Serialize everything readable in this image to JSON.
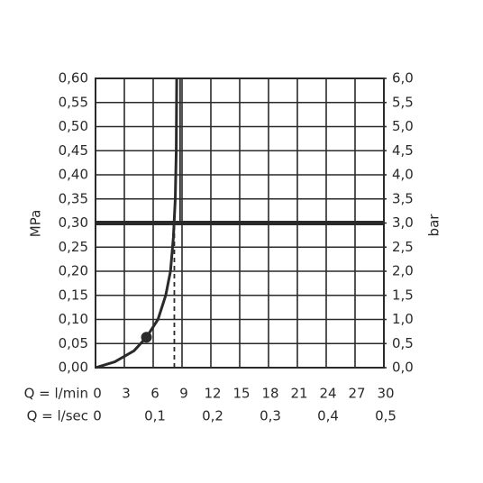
{
  "chart_data": {
    "type": "line",
    "x_label": "Q = l/min",
    "x2_label": "Q = l/sec",
    "y_label": "MPa",
    "y2_label": "bar",
    "xlim": [
      0,
      30
    ],
    "xticks": [
      0,
      3,
      6,
      9,
      12,
      15,
      18,
      21,
      24,
      27,
      30
    ],
    "x2lim": [
      0,
      0.5
    ],
    "x2ticks": [
      0,
      {
        "value": 0.1,
        "label": "0,1"
      },
      {
        "value": 0.2,
        "label": "0,2"
      },
      {
        "value": 0.3,
        "label": "0,3"
      },
      {
        "value": 0.4,
        "label": "0,4"
      },
      {
        "value": 0.5,
        "label": "0,5"
      }
    ],
    "ylim": [
      0,
      0.6
    ],
    "yticks": [
      {
        "value": 0,
        "label": "0,00"
      },
      {
        "value": 0.05,
        "label": "0,05"
      },
      {
        "value": 0.1,
        "label": "0,10"
      },
      {
        "value": 0.15,
        "label": "0,15"
      },
      {
        "value": 0.2,
        "label": "0,20"
      },
      {
        "value": 0.25,
        "label": "0,25"
      },
      {
        "value": 0.3,
        "label": "0,30"
      },
      {
        "value": 0.35,
        "label": "0,35"
      },
      {
        "value": 0.4,
        "label": "0,40"
      },
      {
        "value": 0.45,
        "label": "0,45"
      },
      {
        "value": 0.5,
        "label": "0,50"
      },
      {
        "value": 0.55,
        "label": "0,55"
      },
      {
        "value": 0.6,
        "label": "0,60"
      }
    ],
    "y2lim": [
      0,
      6
    ],
    "y2ticks": [
      {
        "value": 0,
        "label": "0,0"
      },
      {
        "value": 0.5,
        "label": "0,5"
      },
      {
        "value": 1,
        "label": "1,0"
      },
      {
        "value": 1.5,
        "label": "1,5"
      },
      {
        "value": 2,
        "label": "2,0"
      },
      {
        "value": 2.5,
        "label": "2,5"
      },
      {
        "value": 3,
        "label": "3,0"
      },
      {
        "value": 3.5,
        "label": "3,5"
      },
      {
        "value": 4,
        "label": "4,0"
      },
      {
        "value": 4.5,
        "label": "4,5"
      },
      {
        "value": 5,
        "label": "5,0"
      },
      {
        "value": 5.5,
        "label": "5,5"
      },
      {
        "value": 6,
        "label": "6,0"
      }
    ],
    "grid": true,
    "color": "#2a2a2a",
    "series": [
      {
        "x": [
          0,
          2,
          4,
          5.3,
          6.5,
          7.3,
          7.8,
          8.1,
          8.3,
          8.4,
          8.45
        ],
        "values": [
          0,
          0.012,
          0.035,
          0.063,
          0.1,
          0.15,
          0.2,
          0.27,
          0.35,
          0.45,
          0.6
        ]
      }
    ],
    "marker": {
      "x": 5.3,
      "value": 0.063
    },
    "reference_pressure": 0.3,
    "guides": [
      {
        "x": [
          8.2,
          8.2
        ],
        "values": [
          0,
          0.3
        ],
        "dashed": true
      },
      {
        "x": [
          8.8,
          8.8
        ],
        "values": [
          0.3,
          0.6
        ],
        "dashed": false
      }
    ]
  }
}
